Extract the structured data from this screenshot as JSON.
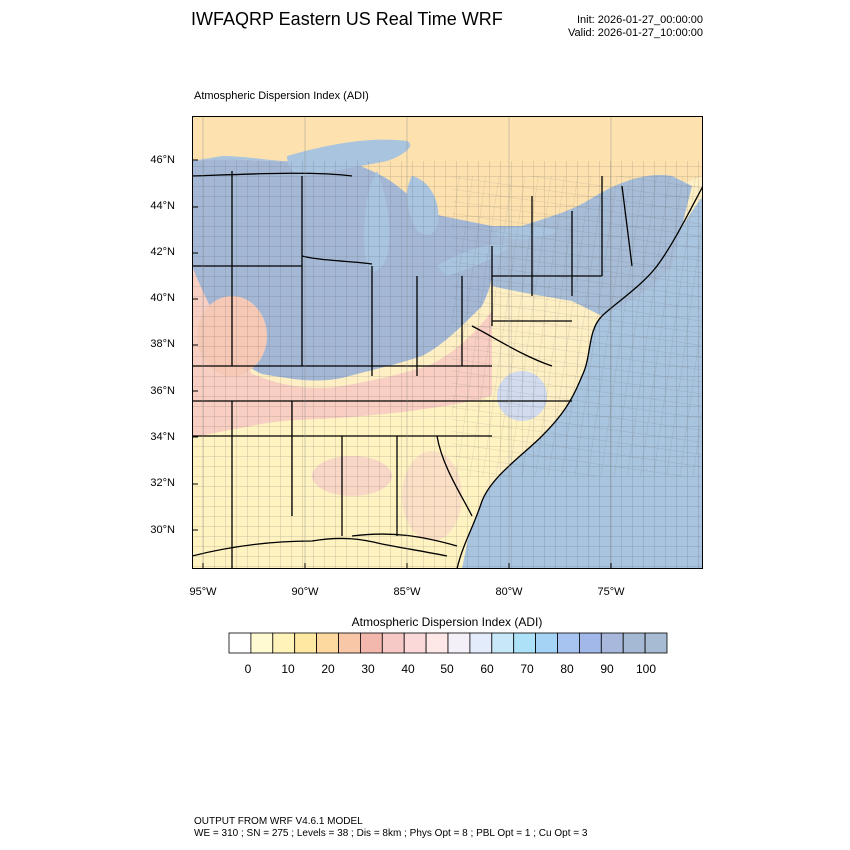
{
  "header": {
    "title": "IWFAQRP Eastern US Real Time WRF",
    "init": "Init: 2026-01-27_00:00:00",
    "valid": "Valid: 2026-01-27_10:00:00"
  },
  "map": {
    "field_label": "Atmospheric Dispersion Index   (ADI)",
    "lat_labels": [
      "46°N",
      "44°N",
      "42°N",
      "40°N",
      "38°N",
      "36°N",
      "34°N",
      "32°N",
      "30°N"
    ],
    "lon_labels": [
      "95°W",
      "90°W",
      "85°W",
      "80°W",
      "75°W"
    ],
    "colors": {
      "ocean": "#a9c4de",
      "land_canada": "#fde9b0",
      "high_adi": "#9fb7d6",
      "state_line": "#000000"
    }
  },
  "colorbar": {
    "title": "Atmospheric Dispersion Index  (ADI)",
    "ticks": [
      "0",
      "10",
      "20",
      "30",
      "40",
      "50",
      "60",
      "70",
      "80",
      "90",
      "100"
    ],
    "colors": [
      "#ffffff",
      "#fffad2",
      "#fff3b9",
      "#ffe9a2",
      "#fdd9a0",
      "#f7c7a8",
      "#f2b8ad",
      "#f6c9c6",
      "#fad9d8",
      "#fde8e7",
      "#f4f0f8",
      "#e2ecfb",
      "#c8e8fa",
      "#ade1f8",
      "#a4d3f5",
      "#a6c4ef",
      "#a1b8e8",
      "#a8b7dc",
      "#a6b9d4",
      "#a7bcd2"
    ]
  },
  "footer": {
    "line1": "OUTPUT FROM WRF V4.6.1 MODEL",
    "line2": "WE = 310 ; SN = 275 ; Levels = 38 ; Dis = 8km ; Phys Opt = 8 ; PBL Opt = 1 ; Cu Opt = 3"
  }
}
